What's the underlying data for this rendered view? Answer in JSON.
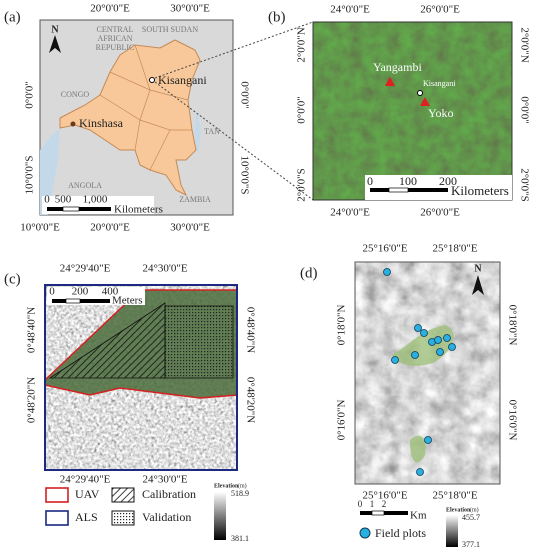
{
  "panels": {
    "a": {
      "label": "(a)",
      "top_ticks": [
        "20°0'0\"E",
        "30°0'0\"E"
      ],
      "bottom_ticks": [
        "10°0'0\"E",
        "20°0'0\"E",
        "30°0'0\"E"
      ],
      "left_ticks": [
        "0°0'0\"",
        "10°0'0\"S"
      ],
      "right_ticks": [
        "0°0'0\"",
        "10°0'0\"S"
      ],
      "car_lines": [
        "CENTRAL",
        "AFRICAN",
        "REPUBLIC"
      ],
      "countries": [
        "SOUTH SUDAN",
        "CONGO",
        "ANGOLA",
        "ZAMBIA",
        "TAN"
      ],
      "cities": [
        "Kisangani",
        "Kinshasa"
      ],
      "north": "N",
      "scale": [
        "0",
        "500",
        "1,000"
      ],
      "scale_unit": "Kilometers"
    },
    "b": {
      "label": "(b)",
      "top_ticks": [
        "24°0'0\"E",
        "26°0'0\"E"
      ],
      "bottom_ticks": [
        "24°0'0\"E",
        "26°0'0\"E"
      ],
      "left_ticks": [
        "2°0'0\"N",
        "0°0'0\"",
        "2°0'0\"S"
      ],
      "right_ticks": [
        "2°0'0\"N",
        "0°0'0\"",
        "2°0'0\"S"
      ],
      "places": [
        "Yangambi",
        "Kisangani",
        "Yoko"
      ],
      "scale": [
        "0",
        "100",
        "200"
      ],
      "scale_unit": "Kilometers"
    },
    "c": {
      "label": "(c)",
      "top_ticks": [
        "24°29'40\"E",
        "24°30'0\"E"
      ],
      "bottom_ticks": [
        "24°29'40\"E",
        "24°30'0\"E"
      ],
      "left_ticks": [
        "0°48'40\"N",
        "0°48'20\"N"
      ],
      "right_ticks": [
        "0°48'40\"N",
        "0°48'20\"N"
      ],
      "scale": [
        "0",
        "200",
        "400"
      ],
      "scale_unit": "Meters",
      "legend": [
        "UAV",
        "ALS",
        "Calibration",
        "Validation"
      ],
      "elevation_title": "Elevation",
      "elevation_unit": "(m)",
      "elevation_max": "518.9",
      "elevation_min": "381.1"
    },
    "d": {
      "label": "(d)",
      "top_ticks": [
        "25°16'0\"E",
        "25°18'0\"E"
      ],
      "bottom_ticks": [
        "25°16'0\"E",
        "25°18'0\"E"
      ],
      "left_ticks": [
        "0°18'0\"N",
        "0°16'0\"N"
      ],
      "right_ticks": [
        "0°18'0\"N",
        "0°16'0\"N"
      ],
      "north": "N",
      "scale": [
        "0",
        "1",
        "2"
      ],
      "scale_unit": "Km",
      "legend": "Field plots",
      "elevation_title": "Elevation",
      "elevation_unit": "(m)",
      "elevation_max": "455.7",
      "elevation_min": "377.1"
    }
  }
}
